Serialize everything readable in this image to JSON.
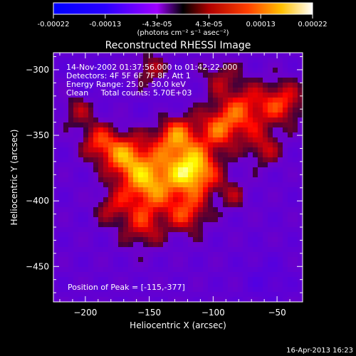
{
  "chart_data": {
    "type": "heatmap",
    "title": "Reconstructed RHESSI Image",
    "xlabel": "Heliocentric X (arcsec)",
    "ylabel": "Heliocentric Y (arcsec)",
    "xlim": [
      -225,
      -30
    ],
    "ylim": [
      -477,
      -287
    ],
    "xticks": [
      -200,
      -150,
      -100,
      -50
    ],
    "yticks": [
      -300,
      -350,
      -400,
      -450
    ],
    "colorbar": {
      "ticks": [
        "-0.00022",
        "-0.00013",
        "-4.3e-05",
        "4.3e-05",
        "0.00013",
        "0.00022"
      ],
      "unit_label": "(photons cm⁻² s⁻¹ asec⁻²)",
      "range": [
        -0.00022,
        0.00022
      ]
    },
    "annotations": [
      "14-Nov-2002 01:37:56.000 to 01:42:22.000",
      "Detectors: 4F 5F 6F 7F 8F, Att 1",
      "Energy Range: 25.0 - 50.0 keV",
      "Clean     Total counts: 5.70E+03"
    ],
    "peak_label": "Position of Peak = [-115,-377]",
    "peak_position": [
      -115,
      -377
    ],
    "sources": [
      {
        "x": -115,
        "y": -377,
        "amplitude": 0.00022,
        "width": 13
      },
      {
        "x": -150,
        "y": -385,
        "amplitude": 0.00019,
        "width": 16
      },
      {
        "x": -130,
        "y": -350,
        "amplitude": 0.00016,
        "width": 12
      },
      {
        "x": -170,
        "y": -365,
        "amplitude": 0.00014,
        "width": 12
      },
      {
        "x": -95,
        "y": -345,
        "amplitude": 0.00013,
        "width": 12
      },
      {
        "x": -75,
        "y": -330,
        "amplitude": 0.00012,
        "width": 14
      },
      {
        "x": -45,
        "y": -325,
        "amplitude": 0.00012,
        "width": 12
      },
      {
        "x": -60,
        "y": -360,
        "amplitude": 9e-05,
        "width": 10
      },
      {
        "x": -190,
        "y": -355,
        "amplitude": 0.00011,
        "width": 10
      },
      {
        "x": -205,
        "y": -330,
        "amplitude": 8e-05,
        "width": 10
      },
      {
        "x": -155,
        "y": -420,
        "amplitude": 0.0001,
        "width": 12
      },
      {
        "x": -120,
        "y": -410,
        "amplitude": 0.00012,
        "width": 11
      },
      {
        "x": -150,
        "y": -300,
        "amplitude": 8e-05,
        "width": 10
      },
      {
        "x": -95,
        "y": -305,
        "amplitude": 7e-05,
        "width": 10
      },
      {
        "x": -85,
        "y": -395,
        "amplitude": 7e-05,
        "width": 9
      },
      {
        "x": -180,
        "y": -405,
        "amplitude": 8e-05,
        "width": 9
      }
    ]
  },
  "footer": {
    "date": "16-Apr-2013 16:23"
  }
}
